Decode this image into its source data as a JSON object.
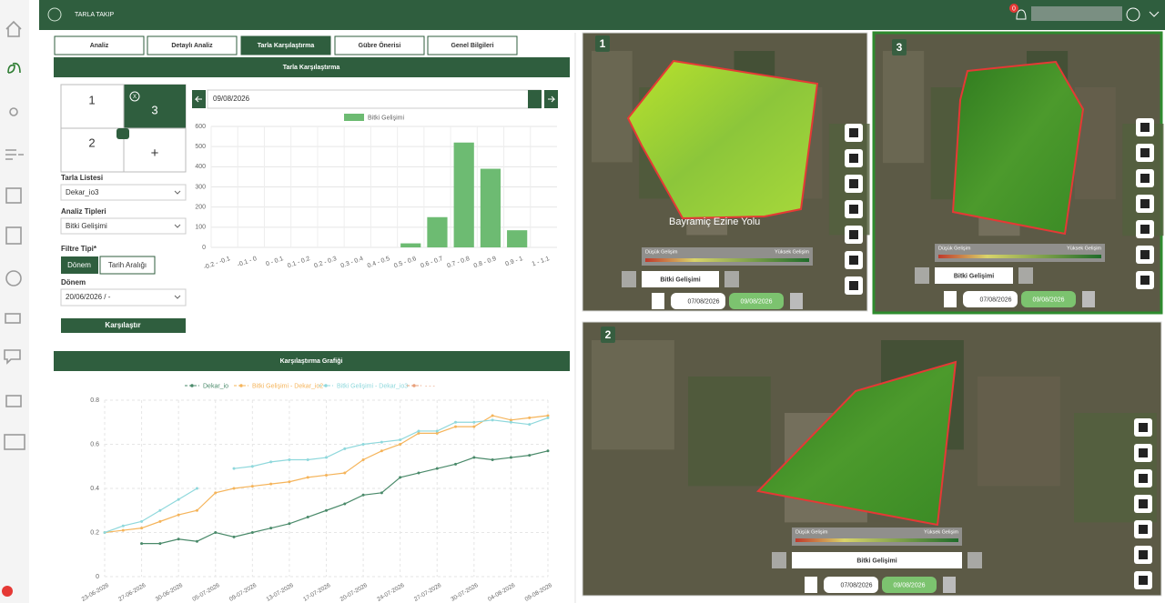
{
  "header": {
    "app_title": "TARLA TAKIP",
    "notification_count": 0
  },
  "tabs": [
    "Analiz",
    "Detaylı Analiz",
    "Tarla Karşılaştırma",
    "Gübre Önerisi",
    "Genel Bilgileri"
  ],
  "panel_title": "Tarla Karşılaştırma",
  "grid_cells": [
    "1",
    "3",
    "2",
    "+"
  ],
  "close_label": "X",
  "form": {
    "field_list_label": "Tarla Listesi",
    "field_list_value": "Dekar_io3",
    "analysis_label": "Analiz Tipleri",
    "analysis_value": "Bitki Gelişimi",
    "filter_label": "Filtre Tipi*",
    "filter_options": [
      "Dönem",
      "Tarih Aralığı"
    ],
    "period_label": "Dönem",
    "period_value": "20/06/2026 / -",
    "compare_button": "Karşılaştır"
  },
  "date_input": "09/08/2026",
  "chart_data": [
    {
      "type": "bar",
      "series": [
        {
          "name": "Bitki Gelişimi",
          "color": "#6dbb72",
          "values": [
            0,
            0,
            0,
            0,
            0,
            0,
            0,
            20,
            150,
            520,
            390,
            85,
            0
          ]
        }
      ],
      "categories": [
        "-0.2 - -0.1",
        "-0.1 - 0",
        "0 - 0.1",
        "0.1 - 0.2",
        "0.2 - 0.3",
        "0.3 - 0.4",
        "0.4 - 0.5",
        "0.5 - 0.6",
        "0.6 - 0.7",
        "0.7 - 0.8",
        "0.8 - 0.9",
        "0.9 - 1",
        "1 - 1.1"
      ],
      "ylim": [
        0,
        600
      ],
      "yticks": [
        0,
        100,
        200,
        300,
        400,
        500,
        600
      ],
      "grid": true
    },
    {
      "type": "line",
      "title": "Karşılaştırma Grafiği",
      "categories": [
        "23-06-2026",
        null,
        "27-06-2026",
        null,
        "30-06-2026",
        null,
        "05-07-2026",
        null,
        "09-07-2026",
        null,
        "13-07-2026",
        null,
        "17-07-2026",
        null,
        "20-07-2026",
        null,
        "24-07-2026",
        null,
        "27-07-2026",
        null,
        "30-07-2026",
        null,
        "04-08-2026",
        null,
        "09-08-2026"
      ],
      "series": [
        {
          "name": "Dekar_io",
          "color": "#4a8a6a",
          "values": [
            null,
            null,
            0.15,
            0.15,
            0.17,
            0.16,
            0.2,
            0.18,
            0.2,
            0.22,
            0.24,
            0.27,
            0.3,
            0.33,
            0.37,
            0.38,
            0.45,
            0.47,
            0.49,
            0.51,
            0.54,
            0.53,
            0.54,
            0.55,
            0.57
          ]
        },
        {
          "name": "Bitki Gelişimi - Dekar_io2",
          "color": "#f5b45a",
          "values": [
            0.2,
            0.21,
            0.22,
            0.25,
            0.28,
            0.3,
            0.38,
            0.4,
            0.41,
            0.42,
            0.43,
            0.45,
            0.46,
            0.47,
            0.53,
            0.57,
            0.6,
            0.65,
            0.65,
            0.68,
            0.68,
            0.73,
            0.71,
            0.72,
            0.73
          ]
        },
        {
          "name": "Bitki Gelişimi - Dekar_io3",
          "color": "#8fd8dc",
          "values": [
            0.2,
            0.23,
            0.25,
            0.3,
            0.35,
            0.4,
            null,
            0.49,
            0.5,
            0.52,
            0.53,
            0.53,
            0.54,
            0.58,
            0.6,
            0.61,
            0.62,
            0.66,
            0.66,
            0.7,
            0.7,
            0.71,
            0.7,
            0.69,
            0.72
          ]
        },
        {
          "name": "- - -",
          "color": "#e8a07a",
          "values": [
            null,
            null,
            null,
            null,
            null,
            null,
            null,
            null,
            null,
            null,
            null,
            null,
            null,
            null,
            null,
            null,
            null,
            null,
            null,
            null,
            null,
            null,
            null,
            null,
            null
          ]
        }
      ],
      "ylim": [
        0,
        0.8
      ],
      "yticks": [
        0,
        0.2,
        0.4,
        0.6,
        0.8
      ],
      "grid": true
    }
  ],
  "maps": [
    {
      "number": "1",
      "road_label": "Bayramiç Ezine Yolu",
      "low_label": "Düşük Gelişim",
      "high_label": "Yüksek Gelişim",
      "layer_button": "Bitki Gelişimi",
      "dates": [
        "07/08/2026",
        "09/08/2026"
      ]
    },
    {
      "number": "3",
      "low_label": "Düşük Gelişim",
      "high_label": "Yüksek Gelişim",
      "layer_button": "Bitki Gelişimi",
      "dates": [
        "07/08/2026",
        "09/08/2026"
      ]
    },
    {
      "number": "2",
      "low_label": "Düşük Gelişim",
      "high_label": "Yüksek Gelişim",
      "layer_button": "Bitki Gelişimi",
      "dates": [
        "07/08/2026",
        "09/08/2026"
      ]
    }
  ]
}
